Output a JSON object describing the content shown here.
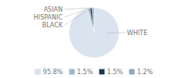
{
  "chart_data": {
    "type": "pie",
    "categories": [
      "WHITE",
      "ASIAN",
      "HISPANIC",
      "BLACK"
    ],
    "values": [
      95.8,
      1.5,
      1.5,
      1.2
    ],
    "value_labels": [
      "95.8%",
      "1.5%",
      "1.5%",
      "1.2%"
    ],
    "colors": [
      "#d9e4ef",
      "#9ab8cc",
      "#1c3557",
      "#8aaabf"
    ],
    "legend": "bottom"
  }
}
